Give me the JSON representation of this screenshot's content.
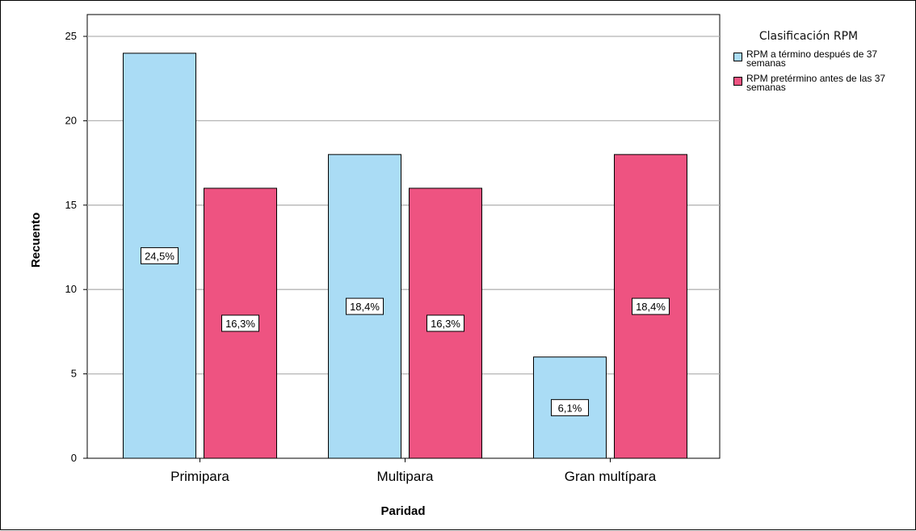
{
  "chart_data": {
    "type": "bar",
    "xlabel": "Paridad",
    "ylabel": "Recuento",
    "ylim": [
      0,
      25
    ],
    "yticks": [
      0,
      5,
      10,
      15,
      20,
      25
    ],
    "grid": true,
    "legend_placement": "right",
    "legend_title": "Clasificación RPM",
    "categories": [
      "Primipara",
      "Multipara",
      "Gran multípara"
    ],
    "series": [
      {
        "name": "RPM a término después de 37 semanas",
        "color": "#aadcf5",
        "values": [
          24,
          18,
          6
        ],
        "labels": [
          "24,5%",
          "18,4%",
          "6,1%"
        ]
      },
      {
        "name": "RPM pretérmino antes de las 37 semanas",
        "color": "#ee5381",
        "values": [
          16,
          16,
          18
        ],
        "labels": [
          "16,3%",
          "16,3%",
          "18,4%"
        ]
      }
    ]
  }
}
